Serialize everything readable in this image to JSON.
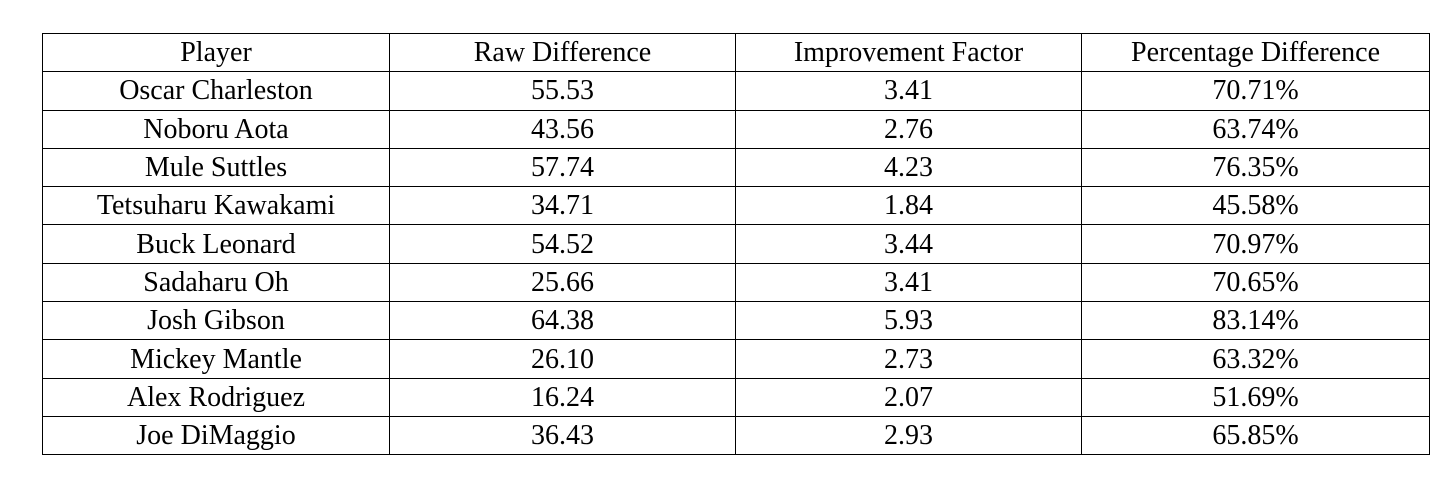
{
  "table": {
    "header": [
      "Player",
      "Raw Difference",
      "Improvement Factor",
      "Percentage Difference"
    ],
    "rows": [
      [
        "Oscar Charleston",
        "55.53",
        "3.41",
        "70.71%"
      ],
      [
        "Noboru Aota",
        "43.56",
        "2.76",
        "63.74%"
      ],
      [
        "Mule Suttles",
        "57.74",
        "4.23",
        "76.35%"
      ],
      [
        "Tetsuharu Kawakami",
        "34.71",
        "1.84",
        "45.58%"
      ],
      [
        "Buck Leonard",
        "54.52",
        "3.44",
        "70.97%"
      ],
      [
        "Sadaharu Oh",
        "25.66",
        "3.41",
        "70.65%"
      ],
      [
        "Josh Gibson",
        "64.38",
        "5.93",
        "83.14%"
      ],
      [
        "Mickey Mantle",
        "26.10",
        "2.73",
        "63.32%"
      ],
      [
        "Alex Rodriguez",
        "16.24",
        "2.07",
        "51.69%"
      ],
      [
        "Joe DiMaggio",
        "36.43",
        "2.93",
        "65.85%"
      ]
    ]
  }
}
